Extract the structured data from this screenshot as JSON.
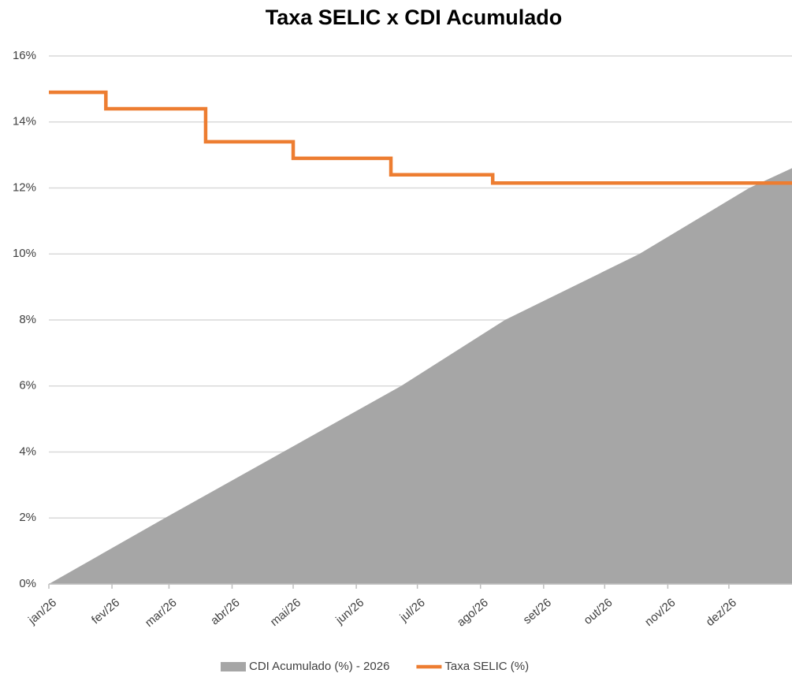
{
  "chart_data": {
    "type": "area_line",
    "title": "Taxa SELIC x CDI Acumulado",
    "xlim": [
      0,
      365
    ],
    "xticks": [
      {
        "value": 0,
        "label": "jan/26"
      },
      {
        "value": 31,
        "label": "fev/26"
      },
      {
        "value": 59,
        "label": "mar/26"
      },
      {
        "value": 90,
        "label": "abr/26"
      },
      {
        "value": 120,
        "label": "mai/26"
      },
      {
        "value": 151,
        "label": "jun/26"
      },
      {
        "value": 181,
        "label": "jul/26"
      },
      {
        "value": 212,
        "label": "ago/26"
      },
      {
        "value": 243,
        "label": "set/26"
      },
      {
        "value": 273,
        "label": "out/26"
      },
      {
        "value": 304,
        "label": "nov/26"
      },
      {
        "value": 334,
        "label": "dez/26"
      }
    ],
    "ylim": [
      0,
      16
    ],
    "yticks": [
      {
        "value": 0,
        "label": "0%"
      },
      {
        "value": 2,
        "label": "2%"
      },
      {
        "value": 4,
        "label": "4%"
      },
      {
        "value": 6,
        "label": "6%"
      },
      {
        "value": 8,
        "label": "8%"
      },
      {
        "value": 10,
        "label": "10%"
      },
      {
        "value": 12,
        "label": "12%"
      },
      {
        "value": 14,
        "label": "14%"
      },
      {
        "value": 16,
        "label": "16%"
      }
    ],
    "grid": true,
    "legend": "bottom",
    "series": [
      {
        "name": "CDI Acumulado (%) - 2026",
        "kind": "area",
        "color": "#a6a6a6",
        "x": [
          0,
          57,
          115,
          173,
          224,
          290,
          344,
          365
        ],
        "values": [
          0,
          2,
          4,
          6,
          8,
          10,
          12,
          12.6
        ]
      },
      {
        "name": "Taxa SELIC (%)",
        "kind": "line",
        "color": "#ed7d31",
        "x": [
          0,
          28,
          28,
          77,
          77,
          120,
          120,
          168,
          168,
          218,
          218,
          365
        ],
        "values": [
          14.9,
          14.9,
          14.4,
          14.4,
          13.4,
          13.4,
          12.9,
          12.9,
          12.4,
          12.4,
          12.15,
          12.15
        ]
      }
    ]
  }
}
